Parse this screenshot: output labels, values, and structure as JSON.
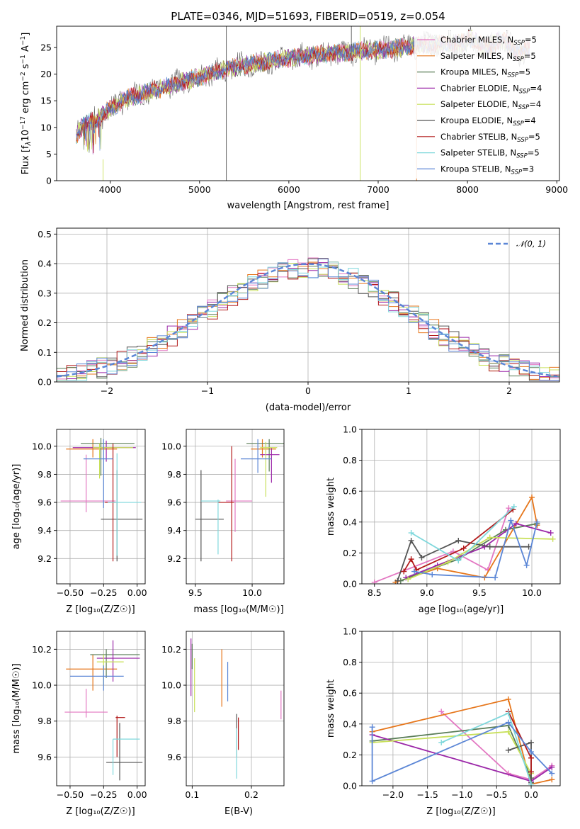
{
  "colors": [
    "#e377c2",
    "#e6761b",
    "#5a7d57",
    "#9b27a8",
    "#c8e05a",
    "#555555",
    "#b31b1b",
    "#7fd8dc",
    "#5b86d6"
  ],
  "gaussian_color": "#5b86d6",
  "chart_data": [
    {
      "id": "spectrum",
      "type": "line",
      "title": "PLATE=0346, MJD=51693, FIBERID=0519, z=0.054",
      "xlabel": "wavelength [Angstrom, rest frame]",
      "ylabel_main": "Flux [f",
      "ylabel_sub": "λ",
      "ylabel_mid": "10",
      "ylabel_sup": "−17",
      "ylabel_rest": " erg cm",
      "ylabel_sup2": "−2",
      "ylabel_rest2": " s",
      "ylabel_sup3": "−1",
      "ylabel_rest3": " A",
      "ylabel_sup4": "−1",
      "ylabel_end": "]",
      "xlim": [
        3400,
        9030
      ],
      "ylim": [
        0,
        29
      ],
      "xticks": [
        "4000",
        "5000",
        "6000",
        "7000",
        "8000",
        "9000"
      ],
      "xtick_values": [
        4000,
        5000,
        6000,
        7000,
        8000,
        9000
      ],
      "yticks": [
        "0",
        "5",
        "10",
        "15",
        "20",
        "25"
      ],
      "ytick_values": [
        0,
        5,
        10,
        15,
        20,
        25
      ],
      "continuum_x": [
        3620,
        3700,
        3850,
        4000,
        4200,
        4400,
        4600,
        4800,
        5000,
        5300,
        5600,
        6000,
        6400,
        6800,
        7200,
        7500,
        7800,
        8100,
        8400,
        8700
      ],
      "continuum_y": [
        8.5,
        10.5,
        11.5,
        13.5,
        15.5,
        16.5,
        17.5,
        18.5,
        19.5,
        21.0,
        22.0,
        23.0,
        23.8,
        24.3,
        24.8,
        25.5,
        25.8,
        26.0,
        25.5,
        24.5
      ],
      "legend_position": "upper right",
      "series": [
        {
          "name": "Chabrier MILES, N",
          "sub": "SSP",
          "suffix": "=5"
        },
        {
          "name": "Salpeter MILES, N",
          "sub": "SSP",
          "suffix": "=5"
        },
        {
          "name": "Kroupa MILES, N",
          "sub": "SSP",
          "suffix": "=5"
        },
        {
          "name": "Chabrier ELODIE, N",
          "sub": "SSP",
          "suffix": "=4"
        },
        {
          "name": "Salpeter ELODIE, N",
          "sub": "SSP",
          "suffix": "=4"
        },
        {
          "name": "Kroupa ELODIE, N",
          "sub": "SSP",
          "suffix": "=4"
        },
        {
          "name": "Chabrier STELIB, N",
          "sub": "SSP",
          "suffix": "=5"
        },
        {
          "name": "Salpeter STELIB, N",
          "sub": "SSP",
          "suffix": "=5"
        },
        {
          "name": "Kroupa STELIB, N",
          "sub": "SSP",
          "suffix": "=3"
        }
      ]
    },
    {
      "id": "residuals",
      "type": "line",
      "xlabel": "(data-model)/error",
      "ylabel": "Normed distribution",
      "xlim": [
        -2.5,
        2.5
      ],
      "ylim": [
        0,
        0.52
      ],
      "xticks": [
        "−2",
        "−1",
        "0",
        "1",
        "2"
      ],
      "xtick_values": [
        -2,
        -1,
        0,
        1,
        2
      ],
      "yticks": [
        "0.0",
        "0.1",
        "0.2",
        "0.3",
        "0.4",
        "0.5"
      ],
      "ytick_values": [
        0,
        0.1,
        0.2,
        0.3,
        0.4,
        0.5
      ],
      "grid": true,
      "legend_position": "upper right",
      "legend_label": "𝒩(0, 1)",
      "bin_width": 0.1
    },
    {
      "id": "age_vs_Z",
      "type": "scatter",
      "xlabel": "Z [log₁₀(Z/Z☉)]",
      "ylabel": "age  [log₁₀(age/yr)]",
      "xlim": [
        -0.6,
        0.06
      ],
      "ylim": [
        9.02,
        10.12
      ],
      "xticks": [
        "−0.50",
        "−0.25",
        "0.00"
      ],
      "xtick_values": [
        -0.5,
        -0.25,
        0.0
      ],
      "yticks": [
        "9.2",
        "9.4",
        "9.6",
        "9.8",
        "10.0"
      ],
      "ytick_values": [
        9.2,
        9.4,
        9.6,
        9.8,
        10.0
      ],
      "grid": true,
      "points": [
        {
          "x": -0.38,
          "y": 9.61,
          "xerr": [
            0.19,
            0.22
          ],
          "yerr": [
            0.08,
            0.33
          ]
        },
        {
          "x": -0.33,
          "y": 9.98,
          "xerr": [
            0.2,
            0.18
          ],
          "yerr": [
            0.06,
            0.07
          ]
        },
        {
          "x": -0.27,
          "y": 10.02,
          "xerr": [
            0.15,
            0.25
          ],
          "yerr": [
            0.23,
            0.04
          ]
        },
        {
          "x": -0.23,
          "y": 9.99,
          "xerr": [
            0.25,
            0.22
          ],
          "yerr": [
            0.1,
            0.05
          ]
        },
        {
          "x": -0.28,
          "y": 9.99,
          "xerr": [
            0.05,
            0.25
          ],
          "yerr": [
            0.22,
            0.03
          ]
        },
        {
          "x": -0.15,
          "y": 9.48,
          "xerr": [
            0.12,
            0.19
          ],
          "yerr": [
            0.3,
            0.35
          ]
        },
        {
          "x": -0.18,
          "y": 9.6,
          "xerr": [
            0.06,
            0.02
          ],
          "yerr": [
            0.42,
            0.42
          ]
        },
        {
          "x": -0.15,
          "y": 9.6,
          "xerr": [
            0.07,
            0.18
          ],
          "yerr": [
            0.38,
            0.35
          ]
        },
        {
          "x": -0.25,
          "y": 9.91,
          "xerr": [
            0.15,
            0.07
          ],
          "yerr": [
            0.35,
            0.14
          ]
        }
      ]
    },
    {
      "id": "age_vs_mass",
      "type": "scatter",
      "xlabel": "mass [log₁₀(M/M☉)]",
      "xlim": [
        9.42,
        10.28
      ],
      "ylim": [
        9.02,
        10.12
      ],
      "xticks": [
        "9.5",
        "10.0"
      ],
      "xtick_values": [
        9.5,
        10.0
      ],
      "yticks": [
        "9.2",
        "9.4",
        "9.6",
        "9.8",
        "10.0"
      ],
      "ytick_values": [
        9.2,
        9.4,
        9.6,
        9.8,
        10.0
      ],
      "grid": true,
      "points": [
        {
          "x": 9.85,
          "y": 9.61,
          "xerr": [
            0.08,
            0.15
          ],
          "yerr": [
            0.22,
            0.3
          ]
        },
        {
          "x": 10.09,
          "y": 9.98,
          "xerr": [
            0.1,
            0.12
          ],
          "yerr": [
            0.06,
            0.07
          ]
        },
        {
          "x": 10.15,
          "y": 10.02,
          "xerr": [
            0.2,
            0.15
          ],
          "yerr": [
            0.2,
            0.03
          ]
        },
        {
          "x": 10.17,
          "y": 9.94,
          "xerr": [
            0.1,
            0.07
          ],
          "yerr": [
            0.2,
            0.05
          ]
        },
        {
          "x": 10.12,
          "y": 9.99,
          "xerr": [
            0.05,
            0.1
          ],
          "yerr": [
            0.35,
            0.04
          ]
        },
        {
          "x": 9.55,
          "y": 9.48,
          "xerr": [
            0.05,
            0.2
          ],
          "yerr": [
            0.3,
            0.35
          ]
        },
        {
          "x": 9.82,
          "y": 9.6,
          "xerr": [
            0.12,
            0.02
          ],
          "yerr": [
            0.42,
            0.4
          ]
        },
        {
          "x": 9.7,
          "y": 9.61,
          "xerr": [
            0.15,
            0.02
          ],
          "yerr": [
            0.38,
            0.01
          ]
        },
        {
          "x": 10.05,
          "y": 9.91,
          "xerr": [
            0.15,
            0.12
          ],
          "yerr": [
            0.1,
            0.14
          ]
        }
      ]
    },
    {
      "id": "mass_weight_vs_age",
      "type": "line",
      "xlabel": "age  [log₁₀(age/yr)]",
      "ylabel": "mass weight",
      "xlim": [
        8.38,
        10.27
      ],
      "ylim": [
        0,
        1
      ],
      "xticks": [
        "8.5",
        "9.0",
        "9.5",
        "10.0"
      ],
      "xtick_values": [
        8.5,
        9.0,
        9.5,
        10.0
      ],
      "yticks": [
        "0.0",
        "0.2",
        "0.4",
        "0.6",
        "0.8",
        "1.0"
      ],
      "ytick_values": [
        0,
        0.2,
        0.4,
        0.6,
        0.8,
        1.0
      ],
      "grid": true,
      "series": [
        {
          "x": [
            8.5,
            9.25,
            9.58,
            9.78
          ],
          "y": [
            0.01,
            0.21,
            0.09,
            0.49
          ]
        },
        {
          "x": [
            8.7,
            9.1,
            9.55,
            10.0,
            10.05
          ],
          "y": [
            0.01,
            0.1,
            0.04,
            0.56,
            0.38
          ]
        },
        {
          "x": [
            8.75,
            9.3,
            9.75,
            10.05
          ],
          "y": [
            0.02,
            0.16,
            0.35,
            0.39
          ]
        },
        {
          "x": [
            8.8,
            9.1,
            9.55,
            9.85,
            10.18
          ],
          "y": [
            0.04,
            0.12,
            0.24,
            0.39,
            0.33
          ]
        },
        {
          "x": [
            8.82,
            9.2,
            9.6,
            10.2
          ],
          "y": [
            0.03,
            0.14,
            0.3,
            0.29
          ]
        },
        {
          "x": [
            8.72,
            8.85,
            8.95,
            9.3,
            9.6,
            9.97
          ],
          "y": [
            0.02,
            0.28,
            0.17,
            0.28,
            0.24,
            0.24
          ]
        },
        {
          "x": [
            8.78,
            8.85,
            8.9,
            9.35,
            9.82
          ],
          "y": [
            0.08,
            0.16,
            0.09,
            0.23,
            0.48
          ]
        },
        {
          "x": [
            8.85,
            9.3,
            9.83
          ],
          "y": [
            0.33,
            0.15,
            0.5
          ]
        },
        {
          "x": [
            8.88,
            9.05,
            9.65,
            9.8,
            9.95,
            10.05
          ],
          "y": [
            0.08,
            0.06,
            0.04,
            0.41,
            0.12,
            0.4
          ]
        }
      ]
    },
    {
      "id": "mass_vs_Z",
      "type": "scatter",
      "xlabel": "Z [log₁₀(Z/Z☉)]",
      "ylabel": "mass [log₁₀(M/M☉)]",
      "xlim": [
        -0.6,
        0.06
      ],
      "ylim": [
        9.44,
        10.3
      ],
      "xticks": [
        "−0.50",
        "−0.25",
        "0.00"
      ],
      "xtick_values": [
        -0.5,
        -0.25,
        0.0
      ],
      "yticks": [
        "9.6",
        "9.8",
        "10.0",
        "10.2"
      ],
      "ytick_values": [
        9.6,
        9.8,
        10.0,
        10.2
      ],
      "grid": true,
      "points": [
        {
          "x": -0.38,
          "y": 9.85,
          "xerr": [
            0.16,
            0.16
          ],
          "yerr": [
            0.03,
            0.13
          ]
        },
        {
          "x": -0.33,
          "y": 10.09,
          "xerr": [
            0.2,
            0.18
          ],
          "yerr": [
            0.12,
            0.08
          ]
        },
        {
          "x": -0.23,
          "y": 10.17,
          "xerr": [
            0.12,
            0.25
          ],
          "yerr": [
            0.13,
            0.03
          ]
        },
        {
          "x": -0.18,
          "y": 10.15,
          "xerr": [
            0.12,
            0.2
          ],
          "yerr": [
            0.13,
            0.1
          ]
        },
        {
          "x": -0.25,
          "y": 10.13,
          "xerr": [
            0.05,
            0.15
          ],
          "yerr": [
            0.13,
            0.04
          ]
        },
        {
          "x": -0.13,
          "y": 9.57,
          "xerr": [
            0.1,
            0.17
          ],
          "yerr": [
            0.1,
            0.22
          ]
        },
        {
          "x": -0.15,
          "y": 9.82,
          "xerr": [
            0.01,
            0.06
          ],
          "yerr": [
            0.22,
            0.01
          ]
        },
        {
          "x": -0.18,
          "y": 9.7,
          "xerr": [
            0.0,
            0.2
          ],
          "yerr": [
            0.2,
            0.0
          ]
        },
        {
          "x": -0.25,
          "y": 10.05,
          "xerr": [
            0.25,
            0.15
          ],
          "yerr": [
            0.08,
            0.06
          ]
        }
      ]
    },
    {
      "id": "mass_vs_EBV",
      "type": "scatter",
      "xlabel": "E(B-V)",
      "xlim": [
        0.09,
        0.255
      ],
      "ylim": [
        9.44,
        10.3
      ],
      "xticks": [
        "0.1",
        "0.2"
      ],
      "xtick_values": [
        0.1,
        0.2
      ],
      "yticks": [
        "9.6",
        "9.8",
        "10.0",
        "10.2"
      ],
      "ytick_values": [
        9.6,
        9.8,
        10.0,
        10.2
      ],
      "grid": true,
      "points": [
        {
          "x": 0.25,
          "y": 9.89,
          "yerr": [
            0.08,
            0.08
          ]
        },
        {
          "x": 0.15,
          "y": 10.04,
          "yerr": [
            0.16,
            0.16
          ]
        },
        {
          "x": 0.1,
          "y": 10.16,
          "yerr": [
            0.07,
            0.07
          ]
        },
        {
          "x": 0.098,
          "y": 10.1,
          "yerr": [
            0.16,
            0.16
          ]
        },
        {
          "x": 0.104,
          "y": 10.0,
          "yerr": [
            0.15,
            0.15
          ]
        },
        {
          "x": 0.175,
          "y": 9.72,
          "yerr": [
            0.12,
            0.12
          ]
        },
        {
          "x": 0.178,
          "y": 9.73,
          "yerr": [
            0.09,
            0.09
          ]
        },
        {
          "x": 0.175,
          "y": 9.62,
          "yerr": [
            0.14,
            0.14
          ]
        },
        {
          "x": 0.16,
          "y": 10.02,
          "yerr": [
            0.11,
            0.11
          ]
        }
      ]
    },
    {
      "id": "mass_weight_vs_Z",
      "type": "line",
      "xlabel": "Z [log₁₀(Z/Z☉)]",
      "ylabel": "mass weight",
      "xlim": [
        -2.45,
        0.42
      ],
      "ylim": [
        0,
        1
      ],
      "xticks": [
        "−2.0",
        "−1.5",
        "−1.0",
        "−0.5",
        "0.0"
      ],
      "xtick_values": [
        -2.0,
        -1.5,
        -1.0,
        -0.5,
        0.0
      ],
      "yticks": [
        "0.0",
        "0.2",
        "0.4",
        "0.6",
        "0.8",
        "1.0"
      ],
      "ytick_values": [
        0,
        0.2,
        0.4,
        0.6,
        0.8,
        1.0
      ],
      "grid": true,
      "series": [
        {
          "x": [
            -1.3,
            -0.33,
            0.0,
            0.3
          ],
          "y": [
            0.48,
            0.08,
            0.04,
            0.13
          ]
        },
        {
          "x": [
            -2.3,
            -0.33,
            0.0,
            0.3
          ],
          "y": [
            0.35,
            0.56,
            0.01,
            0.04
          ]
        },
        {
          "x": [
            -2.3,
            -0.33,
            0.0
          ],
          "y": [
            0.29,
            0.39,
            0.05
          ]
        },
        {
          "x": [
            -2.3,
            0.0,
            0.3
          ],
          "y": [
            0.33,
            0.03,
            0.12
          ]
        },
        {
          "x": [
            -2.3,
            -0.33,
            0.0
          ],
          "y": [
            0.28,
            0.35,
            0.08
          ]
        },
        {
          "x": [
            -0.33,
            0.0,
            0.0
          ],
          "y": [
            0.23,
            0.28,
            0.02
          ]
        },
        {
          "x": [
            -0.33,
            0.0,
            0.0
          ],
          "y": [
            0.48,
            0.18,
            0.09
          ]
        },
        {
          "x": [
            -1.3,
            -0.33,
            0.0
          ],
          "y": [
            0.28,
            0.47,
            0.01
          ]
        },
        {
          "x": [
            -2.3,
            -2.3,
            -0.33,
            0.0,
            0.3
          ],
          "y": [
            0.38,
            0.03,
            0.41,
            0.22,
            0.08
          ]
        }
      ]
    }
  ]
}
